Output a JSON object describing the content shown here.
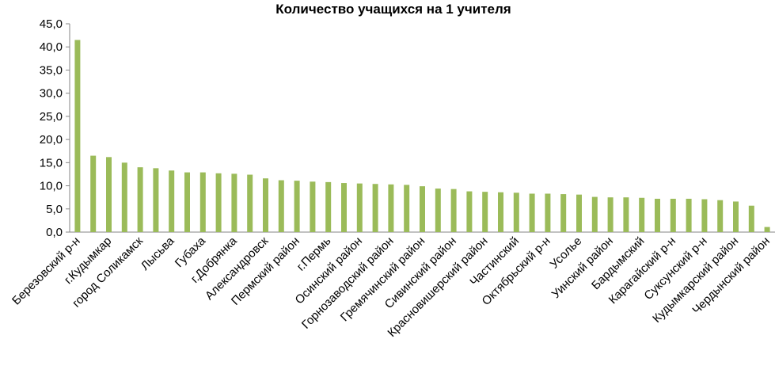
{
  "chart_data": {
    "type": "bar",
    "title": "Количество учащихся на 1 учителя",
    "xlabel": "",
    "ylabel": "",
    "ylim": [
      0,
      45
    ],
    "ytick_step": 5,
    "ytick_labels": [
      "0,0",
      "5,0",
      "10,0",
      "15,0",
      "20,0",
      "25,0",
      "30,0",
      "35,0",
      "40,0",
      "45,0"
    ],
    "grid": false,
    "legend": "none",
    "bar_color": "#9BBB59",
    "categories": [
      "Березовский р-н",
      "",
      "г.Кудымкар",
      "",
      "город Соликамск",
      "",
      "Лысьва",
      "",
      "Губаха",
      "",
      "г.Добрянка",
      "",
      "Александровск",
      "",
      "Пермский район",
      "",
      "г.Пермь",
      "",
      "Осинский район",
      "",
      "Горнозаводский район",
      "",
      "Гремячинский район",
      "",
      "Сивинский район",
      "",
      "Красновишерский район",
      "",
      "Частинский",
      "",
      "Октябрьский р-н",
      "",
      "Усолье",
      "",
      "Уинский район",
      "",
      "Бардымский",
      "",
      "Карагайский р-н",
      "",
      "Суксунский р-н",
      "",
      "Кудымкарский район",
      "",
      "Чердынский район"
    ],
    "values": [
      41.5,
      16.5,
      16.2,
      15.0,
      14.0,
      13.8,
      13.3,
      12.9,
      12.9,
      12.7,
      12.6,
      12.4,
      11.6,
      11.2,
      11.1,
      10.9,
      10.8,
      10.6,
      10.5,
      10.4,
      10.3,
      10.2,
      9.9,
      9.4,
      9.3,
      8.8,
      8.7,
      8.6,
      8.5,
      8.3,
      8.3,
      8.2,
      8.1,
      7.6,
      7.5,
      7.5,
      7.4,
      7.2,
      7.2,
      7.2,
      7.1,
      6.9,
      6.6,
      5.7,
      1.1
    ]
  }
}
